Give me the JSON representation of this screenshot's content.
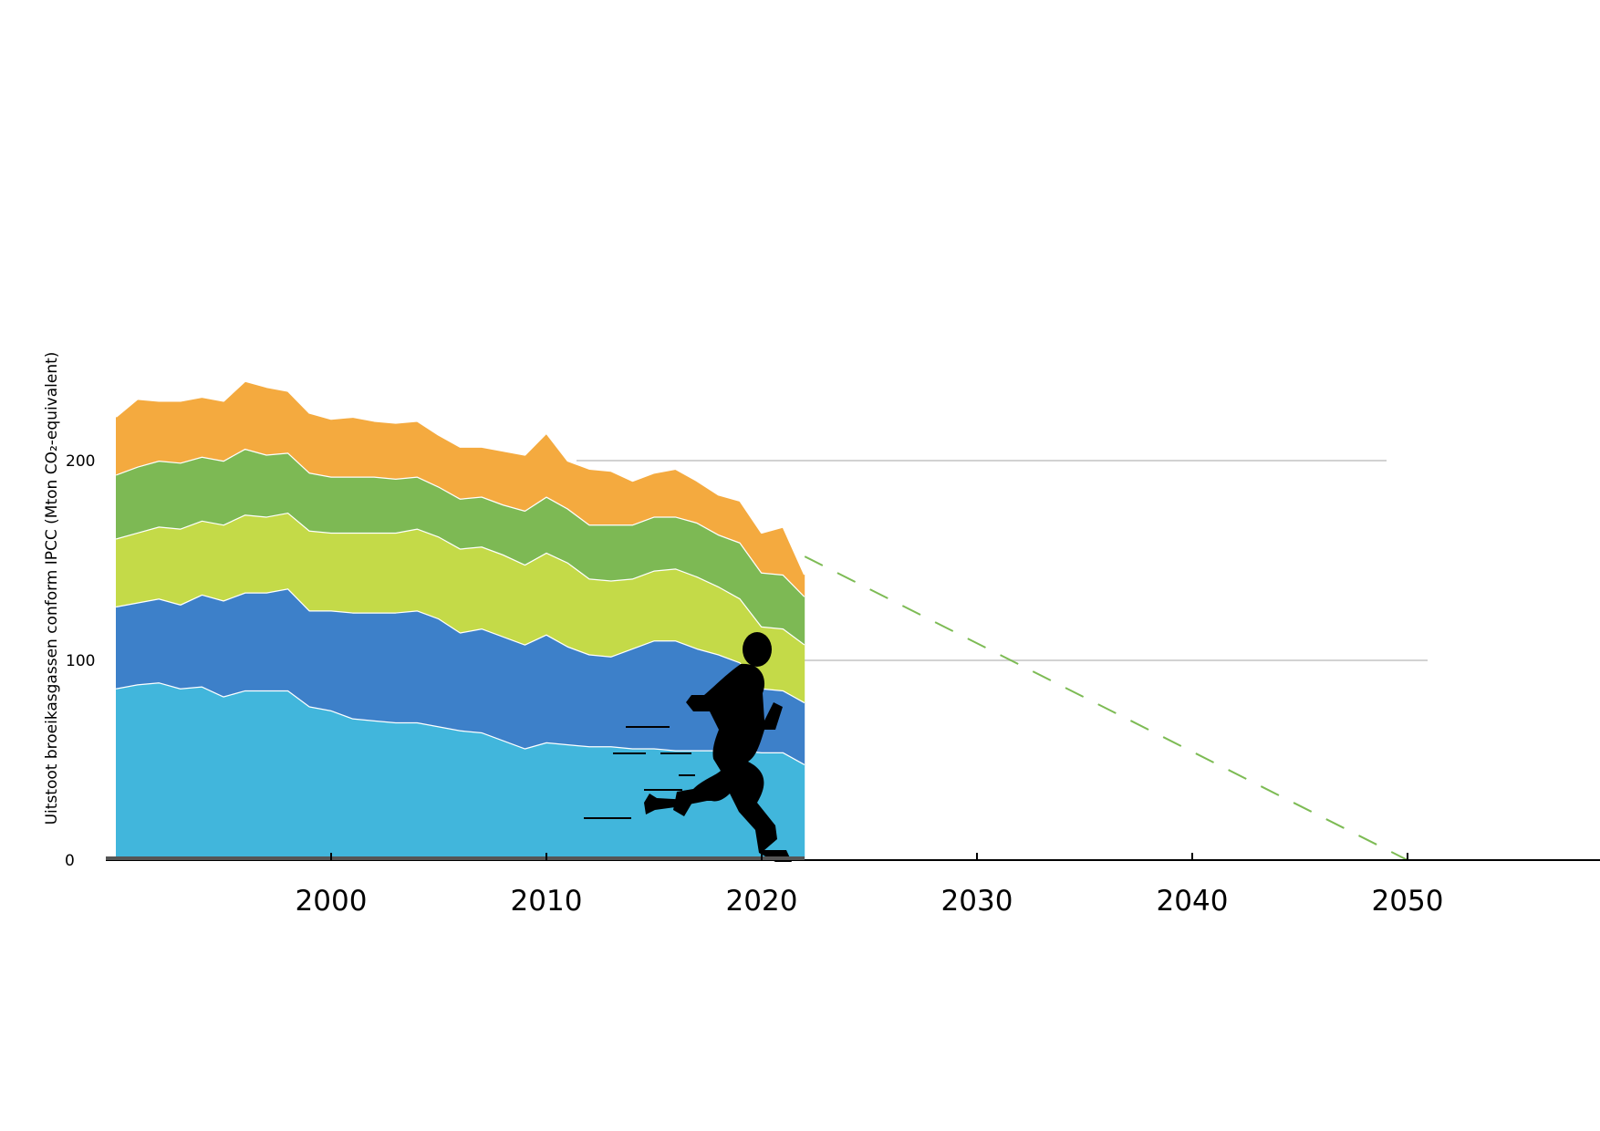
{
  "chart_data": {
    "type": "area",
    "stacked": true,
    "title": "",
    "xlabel": "",
    "ylabel": "Uitstoot broeikasgassen conform IPCC (Mton CO₂-equivalent)",
    "xlim": [
      1990,
      2059
    ],
    "ylim": [
      0,
      200
    ],
    "x_ticks": [
      2000,
      2010,
      2020,
      2030,
      2040,
      2050
    ],
    "x_tick_labels": [
      "2000",
      "2010",
      "2020",
      "2030",
      "2040",
      "2050"
    ],
    "y_ticks": [
      0,
      100,
      200
    ],
    "y_tick_labels": [
      "0",
      "100",
      "200"
    ],
    "grid": "horizontal gridlines at 100 and 200",
    "legend": "none",
    "x": [
      1990,
      1991,
      1992,
      1993,
      1994,
      1995,
      1996,
      1997,
      1998,
      1999,
      2000,
      2001,
      2002,
      2003,
      2004,
      2005,
      2006,
      2007,
      2008,
      2009,
      2010,
      2011,
      2012,
      2013,
      2014,
      2015,
      2016,
      2017,
      2018,
      2019,
      2020,
      2021,
      2022
    ],
    "series": [
      {
        "color": "#41b6dc",
        "values": [
          86,
          88,
          89,
          86,
          87,
          82,
          85,
          85,
          85,
          77,
          75,
          71,
          70,
          69,
          69,
          67,
          65,
          64,
          60,
          56,
          59,
          58,
          57,
          57,
          56,
          56,
          55,
          55,
          55,
          55,
          54,
          54,
          48
        ]
      },
      {
        "color": "#3d80c9",
        "values": [
          41,
          41,
          42,
          42,
          46,
          48,
          49,
          49,
          51,
          48,
          50,
          53,
          54,
          55,
          56,
          54,
          49,
          52,
          52,
          52,
          54,
          49,
          46,
          45,
          50,
          54,
          55,
          51,
          48,
          44,
          32,
          31,
          31
        ]
      },
      {
        "color": "#c4da48",
        "values": [
          34,
          35,
          36,
          38,
          37,
          38,
          39,
          38,
          38,
          40,
          39,
          40,
          40,
          40,
          41,
          41,
          42,
          41,
          41,
          40,
          41,
          42,
          38,
          38,
          35,
          35,
          36,
          36,
          34,
          32,
          31,
          31,
          29
        ]
      },
      {
        "color": "#7db954",
        "values": [
          32,
          33,
          33,
          33,
          32,
          32,
          33,
          31,
          30,
          29,
          28,
          28,
          28,
          27,
          26,
          25,
          25,
          25,
          25,
          27,
          28,
          27,
          27,
          28,
          27,
          27,
          26,
          27,
          26,
          28,
          27,
          27,
          24
        ]
      },
      {
        "color": "#f4aa3f",
        "values": [
          29,
          34,
          30,
          31,
          30,
          30,
          34,
          34,
          31,
          30,
          29,
          30,
          28,
          28,
          28,
          26,
          26,
          25,
          27,
          28,
          32,
          24,
          28,
          27,
          22,
          22,
          24,
          21,
          20,
          21,
          20,
          24,
          11
        ]
      }
    ],
    "projection": {
      "style": "dashed",
      "color": "#7dbb54",
      "x": [
        2022,
        2050
      ],
      "y": [
        152,
        0
      ]
    }
  }
}
